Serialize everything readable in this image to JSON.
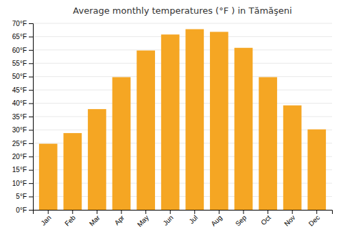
{
  "chart_data": {
    "type": "bar",
    "title": "Average monthly temperatures (°F ) in Tămăşeni",
    "categories": [
      "Jan",
      "Feb",
      "Mar",
      "Apr",
      "May",
      "Jun",
      "Jul",
      "Aug",
      "Sep",
      "Oct",
      "Nov",
      "Dec"
    ],
    "values": [
      24.8,
      28.8,
      37.8,
      49.8,
      59.8,
      65.8,
      67.8,
      66.8,
      60.8,
      49.8,
      39.2,
      30.2
    ],
    "color": "#F5A623",
    "ylim": [
      0,
      70
    ],
    "yticks": [
      {
        "value": 0,
        "label": "0°F"
      },
      {
        "value": 5,
        "label": "5°F"
      },
      {
        "value": 10,
        "label": "10°F"
      },
      {
        "value": 15,
        "label": "15°F"
      },
      {
        "value": 20,
        "label": "20°F"
      },
      {
        "value": 25,
        "label": "25°F"
      },
      {
        "value": 30,
        "label": "30°F"
      },
      {
        "value": 35,
        "label": "35°F"
      },
      {
        "value": 40,
        "label": "40°F"
      },
      {
        "value": 45,
        "label": "45°F"
      },
      {
        "value": 50,
        "label": "50°F"
      },
      {
        "value": 55,
        "label": "55°F"
      },
      {
        "value": 60,
        "label": "60°F"
      },
      {
        "value": 65,
        "label": "65°F"
      },
      {
        "value": 70,
        "label": "70°F"
      }
    ],
    "grid": true
  }
}
